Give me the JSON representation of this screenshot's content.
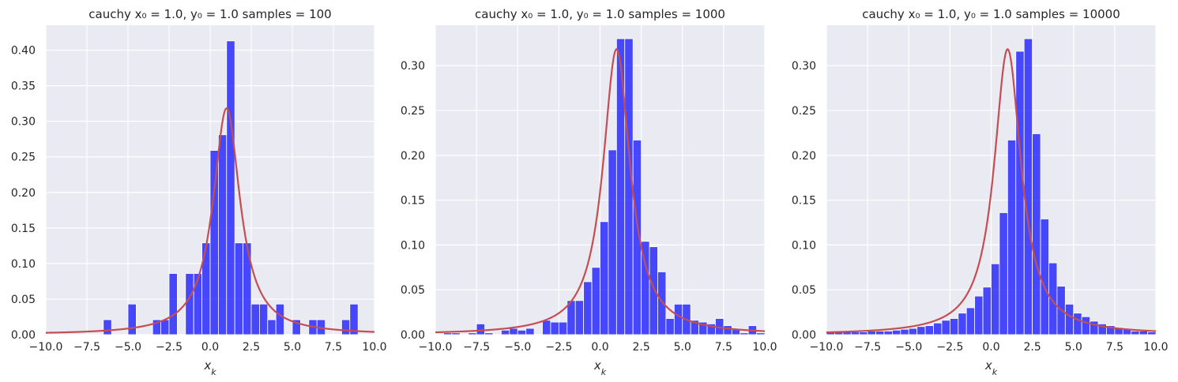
{
  "chart_data": [
    {
      "type": "bar",
      "title": "cauchy x₀ = 1.0, y₀ = 1.0  samples = 100",
      "xlabel": "x_k",
      "xlim": [
        -10,
        10
      ],
      "ylim": [
        0,
        0.435
      ],
      "xticks": [
        "−10.0",
        "−7.5",
        "−5.0",
        "−2.5",
        "0.0",
        "2.5",
        "5.0",
        "7.5",
        "10.0"
      ],
      "yticks": [
        "0.00",
        "0.05",
        "0.10",
        "0.15",
        "0.20",
        "0.25",
        "0.30",
        "0.35",
        "0.40"
      ],
      "ytick_values": [
        0,
        0.05,
        0.1,
        0.15,
        0.2,
        0.25,
        0.3,
        0.35,
        0.4
      ],
      "grid": true,
      "bins": [
        {
          "x0": -6.5,
          "x1": -6.0,
          "value": 0.021
        },
        {
          "x0": -5.0,
          "x1": -4.5,
          "value": 0.043
        },
        {
          "x0": -3.5,
          "x1": -3.0,
          "value": 0.021
        },
        {
          "x0": -3.0,
          "x1": -2.5,
          "value": 0.021
        },
        {
          "x0": -2.5,
          "x1": -2.0,
          "value": 0.086
        },
        {
          "x0": -1.5,
          "x1": -1.0,
          "value": 0.086
        },
        {
          "x0": -1.0,
          "x1": -0.5,
          "value": 0.086
        },
        {
          "x0": -0.5,
          "x1": 0.0,
          "value": 0.129
        },
        {
          "x0": 0.0,
          "x1": 0.5,
          "value": 0.259
        },
        {
          "x0": 0.5,
          "x1": 1.0,
          "value": 0.281
        },
        {
          "x0": 1.0,
          "x1": 1.5,
          "value": 0.413
        },
        {
          "x0": 1.5,
          "x1": 2.0,
          "value": 0.129
        },
        {
          "x0": 2.0,
          "x1": 2.5,
          "value": 0.129
        },
        {
          "x0": 2.5,
          "x1": 3.0,
          "value": 0.043
        },
        {
          "x0": 3.0,
          "x1": 3.5,
          "value": 0.043
        },
        {
          "x0": 3.5,
          "x1": 4.0,
          "value": 0.021
        },
        {
          "x0": 4.0,
          "x1": 4.5,
          "value": 0.043
        },
        {
          "x0": 5.0,
          "x1": 5.5,
          "value": 0.021
        },
        {
          "x0": 6.0,
          "x1": 6.5,
          "value": 0.021
        },
        {
          "x0": 6.5,
          "x1": 7.0,
          "value": 0.021
        },
        {
          "x0": 8.0,
          "x1": 8.5,
          "value": 0.021
        },
        {
          "x0": 8.5,
          "x1": 9.0,
          "value": 0.043
        }
      ],
      "curve": {
        "type": "cauchy_pdf",
        "x0": 1.0,
        "gamma": 1.0,
        "color": "#c44e52"
      },
      "bar_color": "#0000ff"
    },
    {
      "type": "bar",
      "title": "cauchy x₀ = 1.0, y₀ = 1.0  samples = 1000",
      "xlabel": "x_k",
      "xlim": [
        -10,
        10
      ],
      "ylim": [
        0,
        0.345
      ],
      "xticks": [
        "−10.0",
        "−7.5",
        "−5.0",
        "−2.5",
        "0.0",
        "2.5",
        "5.0",
        "7.5",
        "10.0"
      ],
      "yticks": [
        "0.00",
        "0.05",
        "0.10",
        "0.15",
        "0.20",
        "0.25",
        "0.30"
      ],
      "ytick_values": [
        0,
        0.05,
        0.1,
        0.15,
        0.2,
        0.25,
        0.3
      ],
      "grid": true,
      "bins": [
        {
          "x0": -9.5,
          "x1": -9.0,
          "value": 0.002
        },
        {
          "x0": -9.0,
          "x1": -8.5,
          "value": 0.002
        },
        {
          "x0": -8.5,
          "x1": -8.0,
          "value": 0.0
        },
        {
          "x0": -8.0,
          "x1": -7.5,
          "value": 0.002
        },
        {
          "x0": -7.5,
          "x1": -7.0,
          "value": 0.012
        },
        {
          "x0": -7.0,
          "x1": -6.5,
          "value": 0.002
        },
        {
          "x0": -6.5,
          "x1": -6.0,
          "value": 0.0
        },
        {
          "x0": -6.0,
          "x1": -5.5,
          "value": 0.005
        },
        {
          "x0": -5.5,
          "x1": -5.0,
          "value": 0.007
        },
        {
          "x0": -5.0,
          "x1": -4.5,
          "value": 0.005
        },
        {
          "x0": -4.5,
          "x1": -4.0,
          "value": 0.007
        },
        {
          "x0": -4.0,
          "x1": -3.5,
          "value": 0.0
        },
        {
          "x0": -3.5,
          "x1": -3.0,
          "value": 0.016
        },
        {
          "x0": -3.0,
          "x1": -2.5,
          "value": 0.014
        },
        {
          "x0": -2.5,
          "x1": -2.0,
          "value": 0.014
        },
        {
          "x0": -2.0,
          "x1": -1.5,
          "value": 0.038
        },
        {
          "x0": -1.5,
          "x1": -1.0,
          "value": 0.038
        },
        {
          "x0": -1.0,
          "x1": -0.5,
          "value": 0.059
        },
        {
          "x0": -0.5,
          "x1": 0.0,
          "value": 0.075
        },
        {
          "x0": 0.0,
          "x1": 0.5,
          "value": 0.126
        },
        {
          "x0": 0.5,
          "x1": 1.0,
          "value": 0.206
        },
        {
          "x0": 1.0,
          "x1": 1.5,
          "value": 0.33
        },
        {
          "x0": 1.5,
          "x1": 2.0,
          "value": 0.33
        },
        {
          "x0": 2.0,
          "x1": 2.5,
          "value": 0.217
        },
        {
          "x0": 2.5,
          "x1": 3.0,
          "value": 0.104
        },
        {
          "x0": 3.0,
          "x1": 3.5,
          "value": 0.098
        },
        {
          "x0": 3.5,
          "x1": 4.0,
          "value": 0.07
        },
        {
          "x0": 4.0,
          "x1": 4.5,
          "value": 0.018
        },
        {
          "x0": 4.5,
          "x1": 5.0,
          "value": 0.034
        },
        {
          "x0": 5.0,
          "x1": 5.5,
          "value": 0.034
        },
        {
          "x0": 5.5,
          "x1": 6.0,
          "value": 0.016
        },
        {
          "x0": 6.0,
          "x1": 6.5,
          "value": 0.014
        },
        {
          "x0": 6.5,
          "x1": 7.0,
          "value": 0.012
        },
        {
          "x0": 7.0,
          "x1": 7.5,
          "value": 0.018
        },
        {
          "x0": 7.5,
          "x1": 8.0,
          "value": 0.01
        },
        {
          "x0": 8.0,
          "x1": 8.5,
          "value": 0.007
        },
        {
          "x0": 8.5,
          "x1": 9.0,
          "value": 0.002
        },
        {
          "x0": 9.0,
          "x1": 9.5,
          "value": 0.01
        },
        {
          "x0": 9.5,
          "x1": 10.0,
          "value": 0.002
        }
      ],
      "curve": {
        "type": "cauchy_pdf",
        "x0": 1.0,
        "gamma": 1.0,
        "color": "#c44e52"
      },
      "bar_color": "#0000ff"
    },
    {
      "type": "bar",
      "title": "cauchy x₀ = 1.0, y₀ = 1.0  samples = 10000",
      "xlabel": "x_k",
      "xlim": [
        -10,
        10
      ],
      "ylim": [
        0,
        0.345
      ],
      "xticks": [
        "−10.0",
        "−7.5",
        "−5.0",
        "−2.5",
        "0.0",
        "2.5",
        "5.0",
        "7.5",
        "10.0"
      ],
      "yticks": [
        "0.00",
        "0.05",
        "0.10",
        "0.15",
        "0.20",
        "0.25",
        "0.30"
      ],
      "ytick_values": [
        0,
        0.05,
        0.1,
        0.15,
        0.2,
        0.25,
        0.3
      ],
      "grid": true,
      "bins": [
        {
          "x0": -10.0,
          "x1": -9.5,
          "value": 0.003
        },
        {
          "x0": -9.5,
          "x1": -9.0,
          "value": 0.003
        },
        {
          "x0": -9.0,
          "x1": -8.5,
          "value": 0.003
        },
        {
          "x0": -8.5,
          "x1": -8.0,
          "value": 0.003
        },
        {
          "x0": -8.0,
          "x1": -7.5,
          "value": 0.003
        },
        {
          "x0": -7.5,
          "x1": -7.0,
          "value": 0.004
        },
        {
          "x0": -7.0,
          "x1": -6.5,
          "value": 0.004
        },
        {
          "x0": -6.5,
          "x1": -6.0,
          "value": 0.004
        },
        {
          "x0": -6.0,
          "x1": -5.5,
          "value": 0.005
        },
        {
          "x0": -5.5,
          "x1": -5.0,
          "value": 0.006
        },
        {
          "x0": -5.0,
          "x1": -4.5,
          "value": 0.007
        },
        {
          "x0": -4.5,
          "x1": -4.0,
          "value": 0.009
        },
        {
          "x0": -4.0,
          "x1": -3.5,
          "value": 0.01
        },
        {
          "x0": -3.5,
          "x1": -3.0,
          "value": 0.013
        },
        {
          "x0": -3.0,
          "x1": -2.5,
          "value": 0.016
        },
        {
          "x0": -2.5,
          "x1": -2.0,
          "value": 0.018
        },
        {
          "x0": -2.0,
          "x1": -1.5,
          "value": 0.024
        },
        {
          "x0": -1.5,
          "x1": -1.0,
          "value": 0.03
        },
        {
          "x0": -1.0,
          "x1": -0.5,
          "value": 0.043
        },
        {
          "x0": -0.5,
          "x1": 0.0,
          "value": 0.053
        },
        {
          "x0": 0.0,
          "x1": 0.5,
          "value": 0.079
        },
        {
          "x0": 0.5,
          "x1": 1.0,
          "value": 0.136
        },
        {
          "x0": 1.0,
          "x1": 1.5,
          "value": 0.217
        },
        {
          "x0": 1.5,
          "x1": 2.0,
          "value": 0.316
        },
        {
          "x0": 2.0,
          "x1": 2.5,
          "value": 0.33
        },
        {
          "x0": 2.5,
          "x1": 3.0,
          "value": 0.224
        },
        {
          "x0": 3.0,
          "x1": 3.5,
          "value": 0.129
        },
        {
          "x0": 3.5,
          "x1": 4.0,
          "value": 0.08
        },
        {
          "x0": 4.0,
          "x1": 4.5,
          "value": 0.054
        },
        {
          "x0": 4.5,
          "x1": 5.0,
          "value": 0.034
        },
        {
          "x0": 5.0,
          "x1": 5.5,
          "value": 0.024
        },
        {
          "x0": 5.5,
          "x1": 6.0,
          "value": 0.02
        },
        {
          "x0": 6.0,
          "x1": 6.5,
          "value": 0.015
        },
        {
          "x0": 6.5,
          "x1": 7.0,
          "value": 0.012
        },
        {
          "x0": 7.0,
          "x1": 7.5,
          "value": 0.01
        },
        {
          "x0": 7.5,
          "x1": 8.0,
          "value": 0.008
        },
        {
          "x0": 8.0,
          "x1": 8.5,
          "value": 0.006
        },
        {
          "x0": 8.5,
          "x1": 9.0,
          "value": 0.004
        },
        {
          "x0": 9.0,
          "x1": 9.5,
          "value": 0.004
        },
        {
          "x0": 9.5,
          "x1": 10.0,
          "value": 0.003
        }
      ],
      "curve": {
        "type": "cauchy_pdf",
        "x0": 1.0,
        "gamma": 1.0,
        "color": "#c44e52"
      },
      "bar_color": "#0000ff"
    }
  ]
}
